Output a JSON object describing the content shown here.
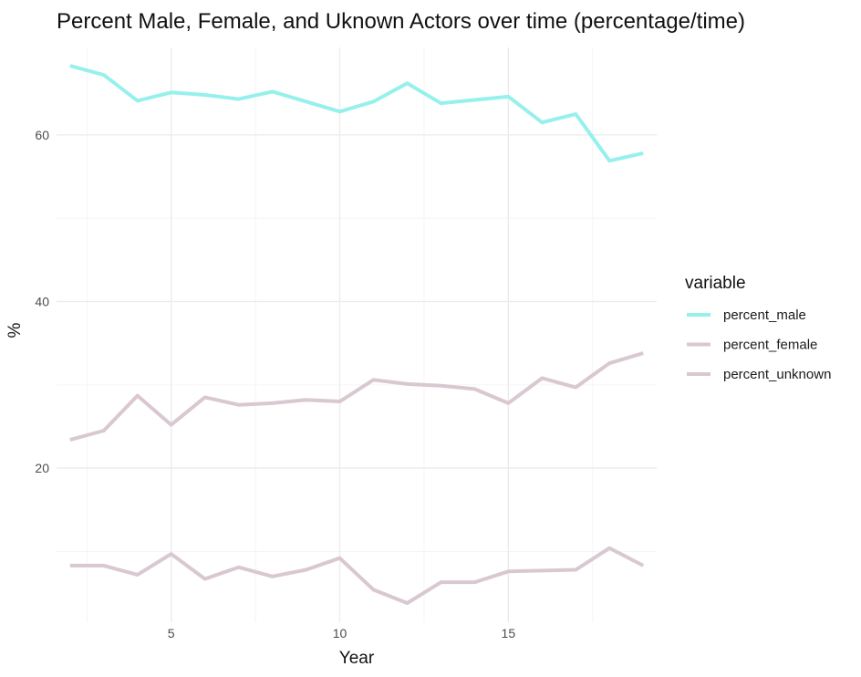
{
  "chart_data": {
    "type": "line",
    "title": "Percent Male, Female, and Uknown Actors over time  (percentage/time)",
    "xlabel": "Year",
    "ylabel": "%",
    "xlim": [
      1.6,
      19.4
    ],
    "ylim": [
      1.5,
      70.5
    ],
    "x_ticks": [
      5,
      10,
      15
    ],
    "x_minor_ticks": [
      2.5,
      7.5,
      12.5,
      17.5
    ],
    "y_ticks": [
      20,
      40,
      60
    ],
    "y_minor_ticks": [
      10,
      30,
      50
    ],
    "grid": true,
    "legend": {
      "title": "variable",
      "position": "right"
    },
    "x": [
      2,
      3,
      4,
      5,
      6,
      7,
      8,
      9,
      10,
      11,
      12,
      13,
      14,
      15,
      16,
      17,
      18,
      19
    ],
    "series": [
      {
        "name": "percent_male",
        "color": "#96f0ec",
        "values": [
          68.3,
          67.2,
          64.1,
          65.1,
          64.8,
          64.3,
          65.2,
          64.0,
          62.8,
          64.0,
          66.2,
          63.8,
          64.2,
          64.6,
          61.5,
          62.5,
          56.9,
          57.8
        ]
      },
      {
        "name": "percent_female",
        "color": "#d9c8d1",
        "values": [
          23.4,
          24.5,
          28.7,
          25.2,
          28.5,
          27.6,
          27.8,
          28.2,
          28.0,
          30.6,
          30.1,
          29.9,
          29.5,
          27.8,
          30.8,
          29.7,
          32.6,
          33.8
        ]
      },
      {
        "name": "percent_unknown",
        "color": "#d9c8d1",
        "values": [
          8.3,
          8.3,
          7.2,
          9.7,
          6.7,
          8.1,
          7.0,
          7.8,
          9.2,
          5.4,
          3.8,
          6.3,
          6.3,
          7.6,
          7.7,
          7.8,
          10.4,
          8.3
        ]
      }
    ]
  }
}
